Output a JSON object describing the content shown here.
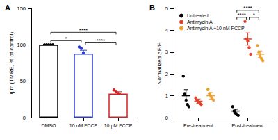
{
  "chart_data": [
    {
      "type": "bar",
      "title": "A",
      "categories": [
        "DMSO",
        "10 nM FCCP",
        "10 μM FCCP"
      ],
      "values": [
        100,
        88,
        33
      ],
      "errors": [
        0,
        4.5,
        2.5
      ],
      "points": [
        [
          100,
          100,
          100,
          100,
          100
        ],
        [
          97,
          95,
          89,
          81,
          78
        ],
        [
          38,
          36,
          33,
          31,
          29
        ]
      ],
      "colors": [
        "#000000",
        "#2b3bd0",
        "#d42020"
      ],
      "y_label": "ψm (TMRE, % of control)",
      "ylim": [
        0,
        150
      ],
      "yticks": [
        0,
        50,
        100,
        150
      ],
      "annotations": [
        {
          "from": 0,
          "to": 1,
          "label": "*"
        },
        {
          "from": 1,
          "to": 2,
          "label": "****"
        },
        {
          "from": 0,
          "to": 2,
          "label": "****"
        }
      ]
    },
    {
      "type": "dot",
      "title": "B",
      "categories": [
        "Pre-treatment",
        "Post-treatment"
      ],
      "series": [
        {
          "name": "Untreated",
          "color": "#000000",
          "values": [
            1.0,
            0.3
          ],
          "errors": [
            0.28,
            0.08
          ],
          "points": [
            [
              1.9,
              1.1,
              0.8,
              0.6,
              0.5
            ],
            [
              0.5,
              0.3,
              0.2,
              0.15,
              0.1
            ]
          ]
        },
        {
          "name": "Antimycin A",
          "color": "#e8402a",
          "values": [
            0.75,
            3.6
          ],
          "errors": [
            0.1,
            0.28
          ],
          "points": [
            [
              0.9,
              0.8,
              0.7,
              0.65,
              0.6
            ],
            [
              4.4,
              3.6,
              3.5,
              3.2,
              2.9
            ]
          ]
        },
        {
          "name": "Antimycin A +10 nM FCCP",
          "color": "#f0a030",
          "values": [
            1.0,
            2.9
          ],
          "errors": [
            0.15,
            0.15
          ],
          "points": [
            [
              1.3,
              1.1,
              1.0,
              0.9,
              0.8
            ],
            [
              3.3,
              3.0,
              2.8,
              2.7,
              2.6
            ]
          ]
        }
      ],
      "marker": "circle",
      "legend": "top-left",
      "y_label": "Normalized ΔF/Fi",
      "ylim": [
        0,
        5
      ],
      "yticks": [
        0,
        1,
        2,
        3,
        4,
        5
      ],
      "annotations": [
        {
          "category": 1,
          "from": 0,
          "to": 1,
          "label": "****"
        },
        {
          "category": 1,
          "from": 1,
          "to": 2,
          "label": "*"
        },
        {
          "category": 1,
          "from": 0,
          "to": 2,
          "label": "****"
        }
      ]
    }
  ]
}
